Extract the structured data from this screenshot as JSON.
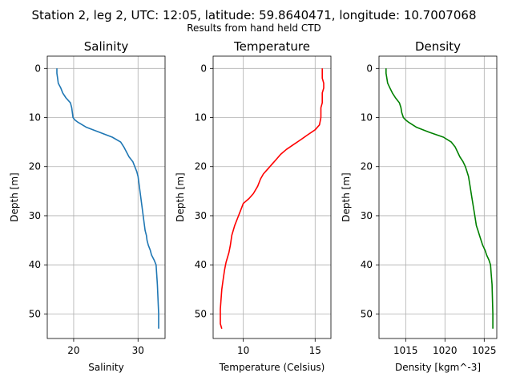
{
  "figure": {
    "title": "Station 2, leg 2, UTC: 12:05, latitude: 59.8640471, longitude: 10.7007068",
    "subtitle": "Results from hand held CTD"
  },
  "chart_data": [
    {
      "type": "line",
      "title": "Salinity",
      "xlabel": "Salinity",
      "ylabel": "Depth [m]",
      "xlim": [
        15.9,
        34.2
      ],
      "ylim": [
        55,
        -2.5
      ],
      "y_inverted": true,
      "grid": true,
      "xticks": [
        20,
        30
      ],
      "yticks": [
        0,
        10,
        20,
        30,
        40,
        50
      ],
      "series": [
        {
          "color": "#1f77b4",
          "x": [
            17.4,
            17.4,
            17.5,
            17.6,
            18.0,
            18.3,
            18.8,
            19.5,
            19.7,
            19.8,
            19.9,
            20.2,
            20.7,
            22.0,
            24.0,
            26.0,
            27.3,
            27.8,
            28.2,
            28.6,
            29.2,
            29.5,
            29.8,
            30.0,
            30.2,
            30.4,
            30.6,
            30.8,
            31.0,
            31.1,
            31.3,
            31.4,
            31.6,
            31.9,
            32.1,
            32.5,
            32.8,
            32.9,
            33.0,
            33.1,
            33.2,
            33.2
          ],
          "y": [
            0,
            1,
            2,
            3,
            4,
            5,
            6,
            7,
            8,
            9,
            10,
            10.5,
            11,
            12,
            13,
            14,
            15,
            16,
            17,
            18,
            19,
            20,
            21,
            22,
            24,
            26,
            28,
            30,
            32,
            33,
            34,
            35,
            36,
            37,
            38,
            39,
            40,
            42,
            44,
            47,
            50,
            53
          ]
        }
      ]
    },
    {
      "type": "line",
      "title": "Temperature",
      "xlabel": "Temperature (Celsius)",
      "ylabel": "Depth [m]",
      "xlim": [
        7.9,
        16.1
      ],
      "ylim": [
        55,
        -2.5
      ],
      "y_inverted": true,
      "grid": true,
      "xticks": [
        10,
        15
      ],
      "yticks": [
        0,
        10,
        20,
        30,
        40,
        50
      ],
      "series": [
        {
          "color": "#ff0000",
          "x": [
            15.5,
            15.5,
            15.5,
            15.6,
            15.6,
            15.5,
            15.5,
            15.5,
            15.4,
            15.4,
            15.4,
            15.3,
            15.0,
            14.5,
            14.0,
            13.5,
            13.0,
            12.6,
            12.3,
            12.0,
            11.7,
            11.4,
            11.2,
            11.0,
            10.7,
            10.4,
            10.0,
            9.8,
            9.6,
            9.4,
            9.2,
            9.1,
            9.0,
            8.9,
            8.8,
            8.7,
            8.6,
            8.5,
            8.45,
            8.4,
            8.4,
            8.4,
            8.5
          ],
          "y": [
            0,
            1,
            2,
            3,
            4,
            5,
            6,
            7,
            8,
            9,
            10,
            11.5,
            12.5,
            13.5,
            14.5,
            15.5,
            16.5,
            17.5,
            18.5,
            19.5,
            20.5,
            21.5,
            22.5,
            24,
            25.5,
            26.5,
            27.5,
            29,
            30.5,
            32,
            34,
            36,
            37.5,
            38.5,
            39.5,
            41,
            43,
            45,
            47,
            49,
            51,
            52,
            53
          ]
        }
      ]
    },
    {
      "type": "line",
      "title": "Density",
      "xlabel": "Density [kgm^-3]",
      "ylabel": "Depth [m]",
      "xlim": [
        1011.6,
        1026.6
      ],
      "ylim": [
        55,
        -2.5
      ],
      "y_inverted": true,
      "grid": true,
      "xticks": [
        1015,
        1020,
        1025
      ],
      "yticks": [
        0,
        10,
        20,
        30,
        40,
        50
      ],
      "series": [
        {
          "color": "#008000",
          "x": [
            1012.5,
            1012.5,
            1012.6,
            1012.7,
            1013.0,
            1013.3,
            1013.7,
            1014.2,
            1014.4,
            1014.5,
            1014.7,
            1015.0,
            1015.4,
            1016.4,
            1018.0,
            1019.8,
            1020.8,
            1021.3,
            1021.6,
            1021.9,
            1022.3,
            1022.6,
            1022.8,
            1023.0,
            1023.2,
            1023.4,
            1023.6,
            1023.8,
            1024.0,
            1024.2,
            1024.4,
            1024.6,
            1024.8,
            1025.1,
            1025.3,
            1025.6,
            1025.8,
            1025.9,
            1026.0,
            1026.05,
            1026.1,
            1026.1
          ],
          "y": [
            0,
            1,
            2,
            3,
            4,
            5,
            6,
            7,
            8,
            9,
            10,
            10.5,
            11,
            12,
            13,
            14,
            15,
            16,
            17,
            18,
            19,
            20,
            21,
            22,
            24,
            26,
            28,
            30,
            32,
            33,
            34,
            35,
            36,
            37,
            38,
            39,
            40,
            42,
            44,
            47,
            50,
            53
          ]
        }
      ]
    }
  ]
}
